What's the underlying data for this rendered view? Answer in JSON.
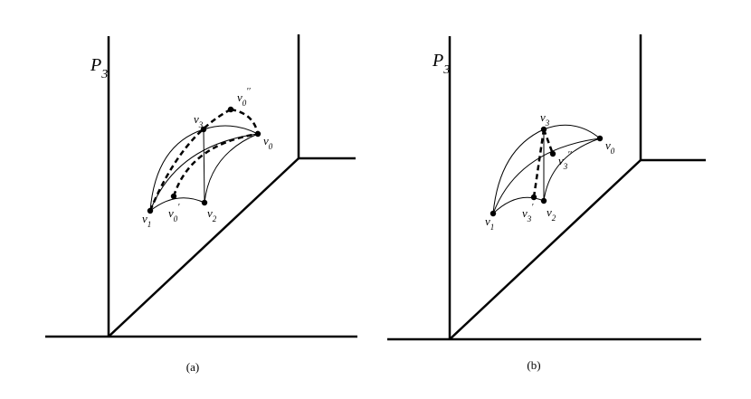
{
  "panels": [
    {
      "caption": "(a)",
      "axis_label": {
        "base": "P",
        "sub": "3"
      },
      "vertices": [
        {
          "base": "v",
          "sub": "0"
        },
        {
          "base": "v",
          "sub": "1"
        },
        {
          "base": "v",
          "sub": "2"
        },
        {
          "base": "v",
          "sub": "3"
        },
        {
          "base": "v",
          "sub": "0",
          "sup": "′"
        },
        {
          "base": "v",
          "sub": "0",
          "sup": "′′"
        }
      ]
    },
    {
      "caption": "(b)",
      "axis_label": {
        "base": "P",
        "sub": "3"
      },
      "vertices": [
        {
          "base": "v",
          "sub": "0"
        },
        {
          "base": "v",
          "sub": "1"
        },
        {
          "base": "v",
          "sub": "2"
        },
        {
          "base": "v",
          "sub": "3"
        },
        {
          "base": "v",
          "sub": "3",
          "sup": "′"
        },
        {
          "base": "v",
          "sub": "3",
          "sup": "′′"
        }
      ]
    }
  ]
}
